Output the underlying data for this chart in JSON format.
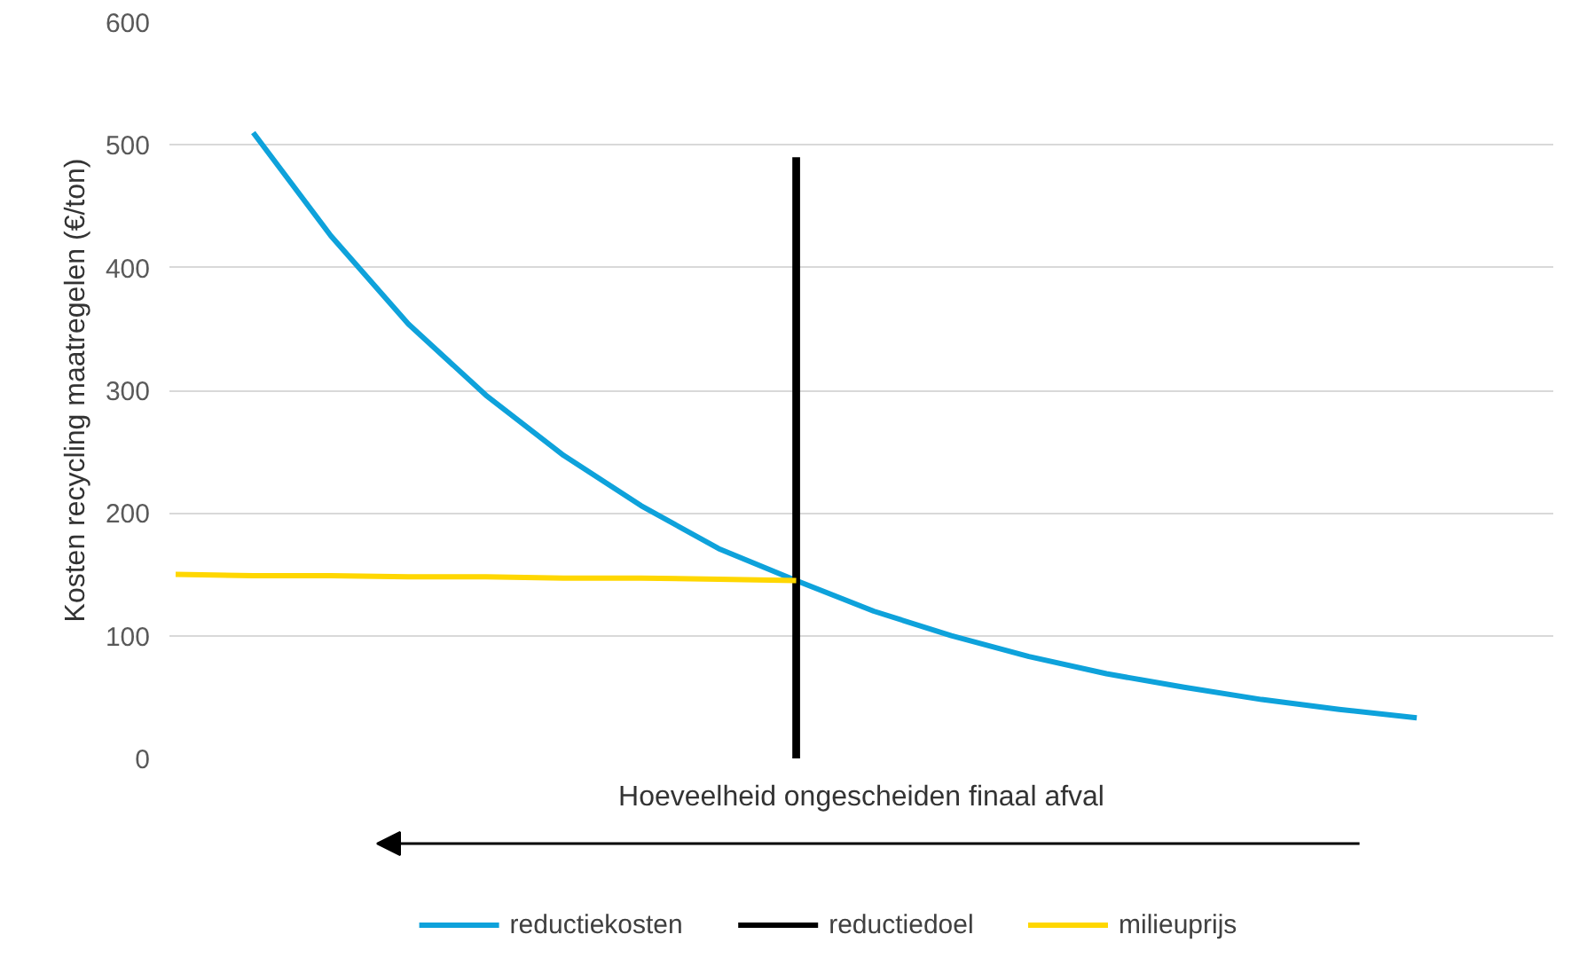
{
  "chart_data": {
    "type": "line",
    "xlabel": "Hoeveelheid ongescheiden finaal afval",
    "ylabel": "Kosten recycling maatregelen (€/ton)",
    "categories": [
      null,
      null,
      null,
      null,
      null,
      null,
      null,
      null,
      null,
      null,
      null,
      null,
      null,
      null,
      null,
      null,
      null
    ],
    "ylim": [
      0,
      600
    ],
    "yticks": [
      0,
      100,
      200,
      300,
      400,
      500,
      600
    ],
    "tick_labels": "y",
    "grid": "y",
    "legend": "bottom",
    "line_style": "solid",
    "marker": "none",
    "series": [
      {
        "name": "reductiekosten",
        "color": "#0ea2db",
        "values": [
          null,
          510,
          426,
          354,
          296,
          247,
          206,
          171,
          145,
          120,
          100,
          83,
          69,
          58,
          48,
          40,
          33
        ]
      },
      {
        "name": "reductiedoel",
        "color": "#000000",
        "type": "bar",
        "values": [
          null,
          null,
          null,
          null,
          null,
          null,
          null,
          null,
          490,
          null,
          null,
          null,
          null,
          null,
          null,
          null,
          null
        ]
      },
      {
        "name": "milieuprijs",
        "color": "#ffd700",
        "values": [
          150,
          149,
          149,
          148,
          148,
          147,
          147,
          146,
          145,
          null,
          null,
          null,
          null,
          null,
          null,
          null,
          null
        ]
      }
    ]
  }
}
